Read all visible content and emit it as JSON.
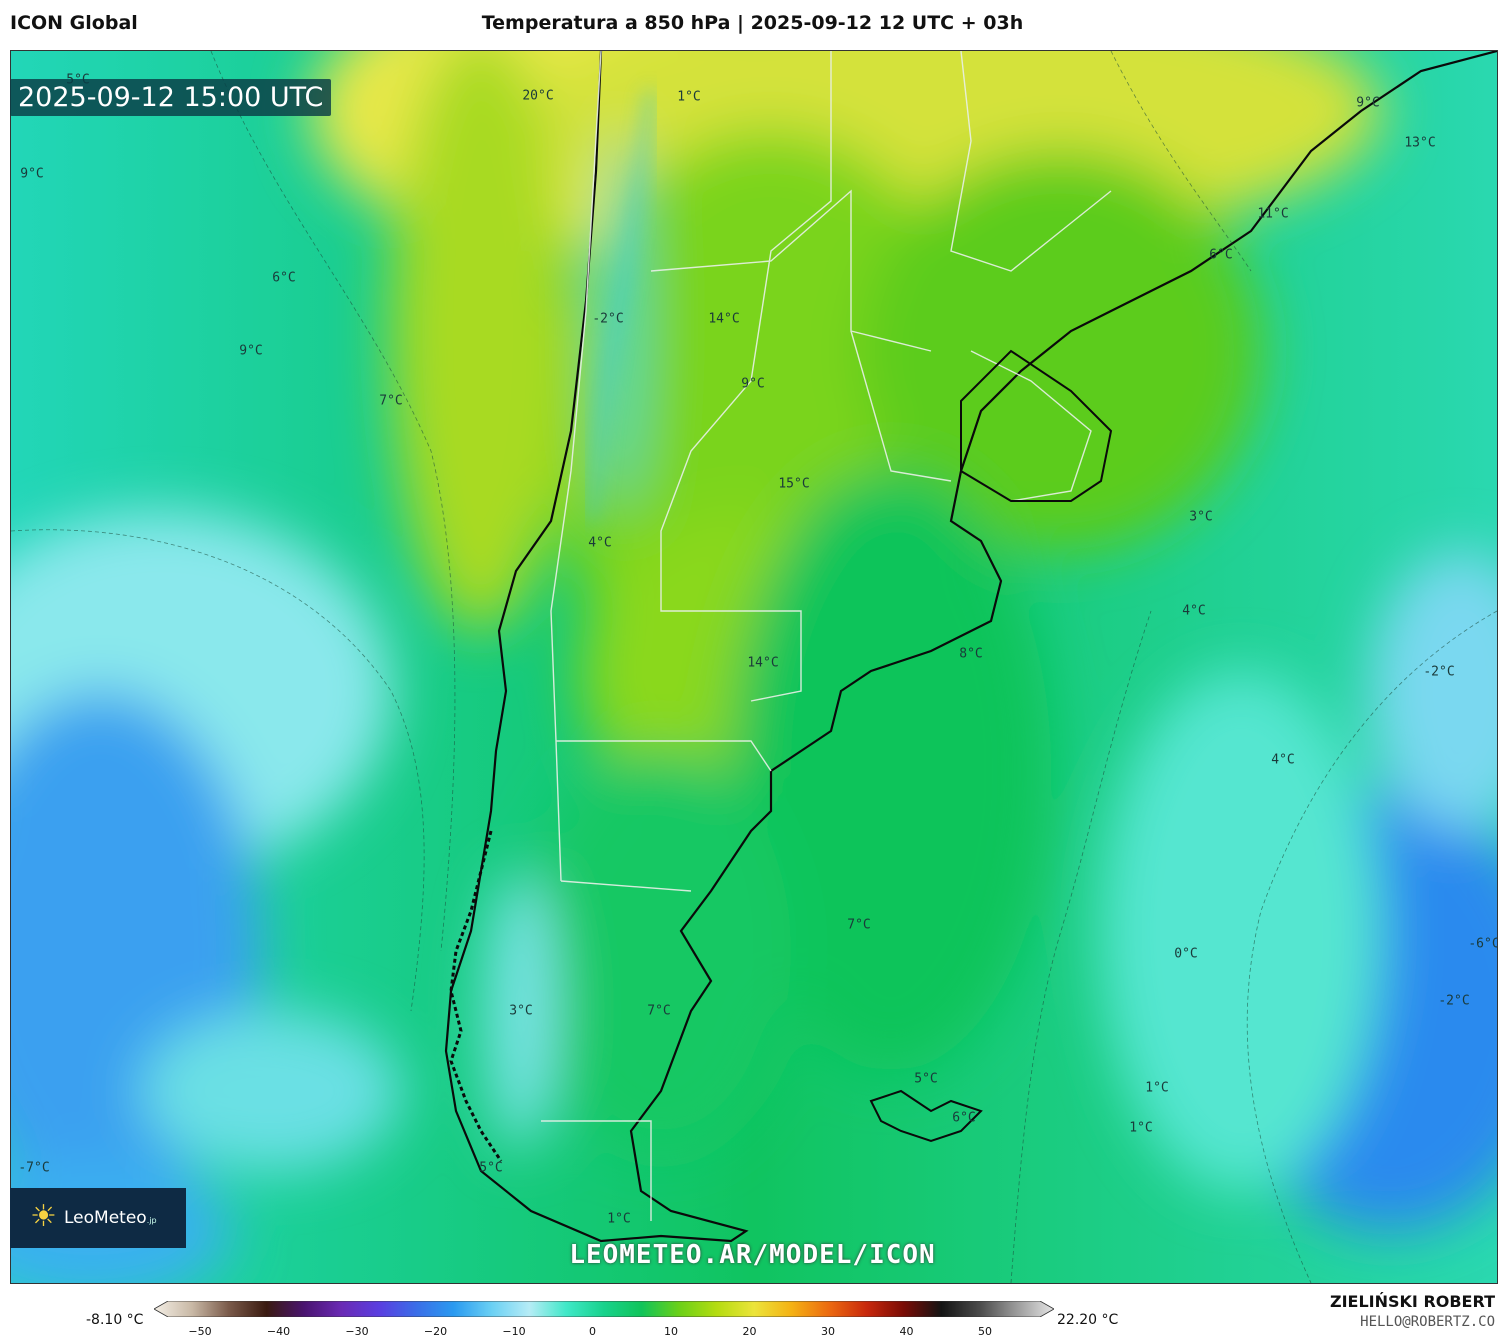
{
  "header": {
    "model": "ICON Global",
    "title": "Temperatura a 850 hPa | 2025-09-12 12 UTC + 03h"
  },
  "timestamp": "2025-09-12 15:00 UTC",
  "logo": {
    "name": "LeoMeteo",
    "suffix": ".jp"
  },
  "watermark": "LEOMETEO.AR/MODEL/ICON",
  "map_labels": [
    {
      "text": "5°C"
    },
    {
      "text": "20°C"
    },
    {
      "text": "1°C"
    },
    {
      "text": "9°C"
    },
    {
      "text": "13°C"
    },
    {
      "text": "9°C"
    },
    {
      "text": "11°C"
    },
    {
      "text": "6°C"
    },
    {
      "text": "6°C"
    },
    {
      "text": "9°C"
    },
    {
      "text": "-2°C"
    },
    {
      "text": "14°C"
    },
    {
      "text": "9°C"
    },
    {
      "text": "7°C"
    },
    {
      "text": "15°C"
    },
    {
      "text": "3°C"
    },
    {
      "text": "4°C"
    },
    {
      "text": "4°C"
    },
    {
      "text": "-2°C"
    },
    {
      "text": "8°C"
    },
    {
      "text": "14°C"
    },
    {
      "text": "4°C"
    },
    {
      "text": "7°C"
    },
    {
      "text": "0°C"
    },
    {
      "text": "-6°C"
    },
    {
      "text": "-2°C"
    },
    {
      "text": "3°C"
    },
    {
      "text": "7°C"
    },
    {
      "text": "5°C"
    },
    {
      "text": "1°C"
    },
    {
      "text": "6°C"
    },
    {
      "text": "1°C"
    },
    {
      "text": "-7°C"
    },
    {
      "text": "5°C"
    },
    {
      "text": "1°C"
    }
  ],
  "colorbar": {
    "min_label": "-8.10 °C",
    "max_label": "22.20 °C",
    "ticks": [
      "−50",
      "−40",
      "−30",
      "−20",
      "−10",
      "0",
      "10",
      "20",
      "30",
      "40",
      "50"
    ],
    "stops": [
      "#f4efe6",
      "#c9b9a6",
      "#7a5a4a",
      "#3a1a10",
      "#4a1470",
      "#6a2ab4",
      "#5a3ee0",
      "#3a6ee8",
      "#2a9af0",
      "#6ad0f4",
      "#b6ecf6",
      "#40e8c8",
      "#18d28c",
      "#10c45a",
      "#6ad018",
      "#b4dc10",
      "#ece43a",
      "#f4b214",
      "#ec6a10",
      "#c8280c",
      "#7a0c06",
      "#141414",
      "#4a4a4a",
      "#9a9a9a",
      "#e4e4e4"
    ]
  },
  "author": "ZIELIŃSKI ROBERT",
  "email": "HELLO@ROBERTZ.CO"
}
